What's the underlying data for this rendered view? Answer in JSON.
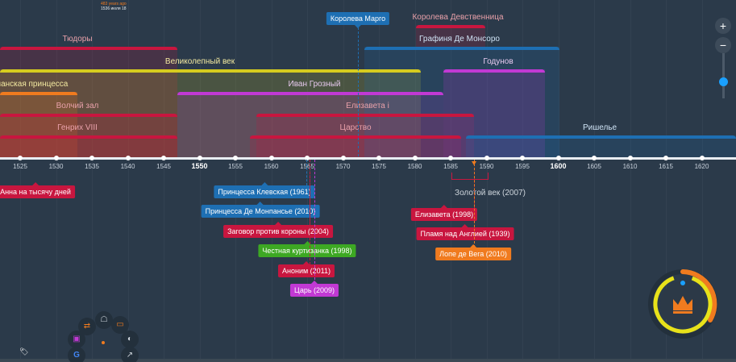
{
  "header": {
    "years_ago": "483 years ago",
    "current_date": "1536 июля 18"
  },
  "axis": {
    "ticks": [
      "1525",
      "1530",
      "1535",
      "1540",
      "1545",
      "1550",
      "1555",
      "1560",
      "1565",
      "1570",
      "1575",
      "1580",
      "1585",
      "1590",
      "1595",
      "1600",
      "1605",
      "1610",
      "1615",
      "1620"
    ],
    "major": [
      "1550",
      "1600"
    ]
  },
  "bands": [
    {
      "label": "Тюдоры",
      "color": "#c8163f"
    },
    {
      "label": "Великолепный век",
      "color": "#d6cc1f"
    },
    {
      "label": "панская принцесса",
      "color": "#f07b1f"
    },
    {
      "label": "Волчий зал",
      "color": "#c8163f"
    },
    {
      "label": "Генрих VIII",
      "color": "#c8163f"
    },
    {
      "label": "Иван Грозный",
      "color": "#c139d4"
    },
    {
      "label": "Елизавета i",
      "color": "#c8163f"
    },
    {
      "label": "Царство",
      "color": "#c8163f"
    },
    {
      "label": "Королева Девственница",
      "color": "#c8163f"
    },
    {
      "label": "Графиня Де Монсоро",
      "color": "#1e6fb3"
    },
    {
      "label": "Годунов",
      "color": "#c139d4"
    },
    {
      "label": "Ришелье",
      "color": "#1e6fb3"
    }
  ],
  "top_events": [
    {
      "label": "Королева Марго",
      "color": "#1e6fb3"
    }
  ],
  "events": [
    {
      "label": "Анна на тысячу дней",
      "color": "#c8163f"
    },
    {
      "label": "Принцесса Клевская (1961)",
      "color": "#1e6fb3"
    },
    {
      "label": "Принцесса Де Монпансье (2010)",
      "color": "#1e6fb3"
    },
    {
      "label": "Заговор против короны (2004)",
      "color": "#c8163f"
    },
    {
      "label": "Честная куртизанка (1998)",
      "color": "#3da823"
    },
    {
      "label": "Аноним (2011)",
      "color": "#c8163f"
    },
    {
      "label": "Царь (2009)",
      "color": "#c139d4"
    },
    {
      "label": "Елизавета (1998)",
      "color": "#c8163f"
    },
    {
      "label": "Пламя над Англией (1939)",
      "color": "#c8163f"
    },
    {
      "label": "Лопе де Вега (2010)",
      "color": "#f07b1f"
    }
  ],
  "golden_age": {
    "label": "Золотой век (2007)",
    "color": "#c8163f"
  },
  "zoom": {
    "plus": "+",
    "minus": "−",
    "level_percent": 45
  },
  "radial_menu": [
    {
      "icon": "share-icon"
    },
    {
      "icon": "pin-icon"
    },
    {
      "icon": "rectangle-icon"
    },
    {
      "icon": "note-icon"
    },
    {
      "icon": "toggle-icon"
    },
    {
      "icon": "google-icon"
    },
    {
      "icon": "chart-icon"
    }
  ],
  "crown_button": {
    "icon": "crown-icon",
    "colors": {
      "outer": "#f07b1f",
      "inner": "#e8e21a",
      "center": "#2c3947"
    }
  }
}
